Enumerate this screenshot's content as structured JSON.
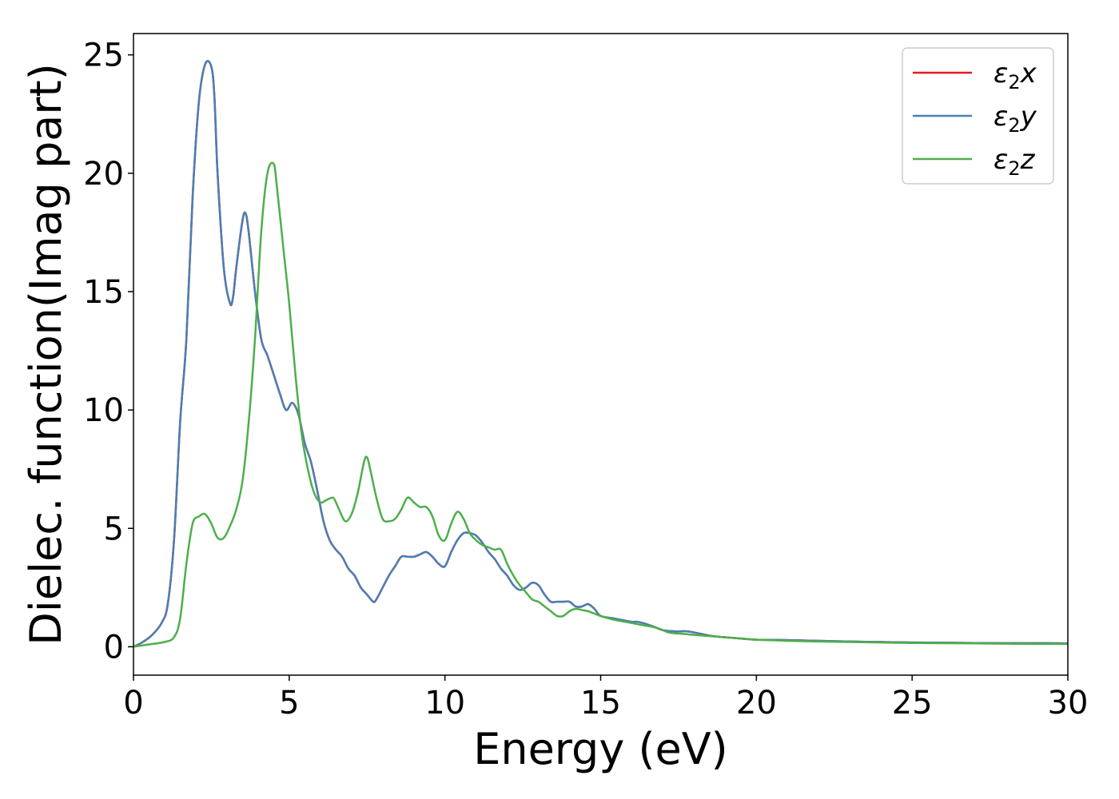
{
  "chart_data": {
    "type": "line",
    "xlabel": "Energy (eV)",
    "ylabel": "Dielec. function(Imag part)",
    "xlim": [
      0,
      30
    ],
    "ylim": [
      -1.2,
      25.9
    ],
    "xticks": [
      0,
      5,
      10,
      15,
      20,
      25,
      30
    ],
    "yticks": [
      0,
      5,
      10,
      15,
      20,
      25
    ],
    "xtick_labels": [
      "0",
      "5",
      "10",
      "15",
      "20",
      "25",
      "30"
    ],
    "ytick_labels": [
      "0",
      "5",
      "10",
      "15",
      "20",
      "25"
    ],
    "grid": false,
    "legend_position": "top-right",
    "series": [
      {
        "name": "ε2x",
        "symbol": "ε",
        "sub": "2",
        "axis": "x",
        "color": "#e41a1c",
        "x": [
          0,
          0.3,
          0.6,
          0.9,
          1.1,
          1.3,
          1.5,
          1.7,
          1.9,
          2.1,
          2.3,
          2.5,
          2.6,
          2.7,
          2.9,
          3.1,
          3.2,
          3.3,
          3.5,
          3.6,
          3.7,
          3.9,
          4.1,
          4.3,
          4.5,
          4.7,
          4.9,
          5.1,
          5.3,
          5.5,
          5.7,
          5.9,
          6.1,
          6.3,
          6.5,
          6.7,
          6.9,
          7.1,
          7.3,
          7.5,
          7.7,
          7.8,
          8.0,
          8.2,
          8.4,
          8.6,
          8.8,
          9.0,
          9.2,
          9.4,
          9.6,
          9.8,
          10.0,
          10.2,
          10.4,
          10.6,
          10.8,
          11.0,
          11.2,
          11.4,
          11.6,
          11.8,
          12.0,
          12.2,
          12.4,
          12.6,
          12.8,
          13.0,
          13.2,
          13.4,
          13.6,
          13.8,
          14.0,
          14.2,
          14.4,
          14.6,
          14.8,
          15.0,
          15.4,
          15.8,
          16.0,
          16.2,
          16.6,
          17.0,
          17.4,
          17.8,
          18.2,
          18.6,
          19.0,
          19.5,
          20.0,
          21.0,
          22.0,
          23.0,
          24.0,
          25.0,
          26.0,
          27.0,
          28.0,
          29.0,
          30.0
        ],
        "y": [
          0,
          0.2,
          0.5,
          1.0,
          1.8,
          4.5,
          9.5,
          13.0,
          19.0,
          23.0,
          24.6,
          24.5,
          23.2,
          20.0,
          16.0,
          14.5,
          14.8,
          16.0,
          18.0,
          18.3,
          17.5,
          15.0,
          13.0,
          12.3,
          11.5,
          10.7,
          10.0,
          10.3,
          9.8,
          8.6,
          7.8,
          6.6,
          5.3,
          4.5,
          4.1,
          3.8,
          3.3,
          3.0,
          2.5,
          2.2,
          1.9,
          2.0,
          2.5,
          3.0,
          3.4,
          3.8,
          3.8,
          3.8,
          3.9,
          4.0,
          3.8,
          3.5,
          3.4,
          4.0,
          4.5,
          4.8,
          4.8,
          4.7,
          4.4,
          4.0,
          3.7,
          3.3,
          3.0,
          2.6,
          2.4,
          2.5,
          2.7,
          2.6,
          2.2,
          1.9,
          1.9,
          1.9,
          1.9,
          1.7,
          1.7,
          1.8,
          1.6,
          1.3,
          1.2,
          1.1,
          1.05,
          1.05,
          0.9,
          0.7,
          0.65,
          0.65,
          0.55,
          0.45,
          0.4,
          0.35,
          0.3,
          0.28,
          0.25,
          0.22,
          0.2,
          0.18,
          0.17,
          0.16,
          0.15,
          0.15,
          0.14
        ]
      },
      {
        "name": "ε2y",
        "symbol": "ε",
        "sub": "2",
        "axis": "y",
        "color": "#4a7fb5",
        "x": [
          0,
          0.3,
          0.6,
          0.9,
          1.1,
          1.3,
          1.5,
          1.7,
          1.9,
          2.1,
          2.3,
          2.5,
          2.6,
          2.7,
          2.9,
          3.1,
          3.2,
          3.3,
          3.5,
          3.6,
          3.7,
          3.9,
          4.1,
          4.3,
          4.5,
          4.7,
          4.9,
          5.1,
          5.3,
          5.5,
          5.7,
          5.9,
          6.1,
          6.3,
          6.5,
          6.7,
          6.9,
          7.1,
          7.3,
          7.5,
          7.7,
          7.8,
          8.0,
          8.2,
          8.4,
          8.6,
          8.8,
          9.0,
          9.2,
          9.4,
          9.6,
          9.8,
          10.0,
          10.2,
          10.4,
          10.6,
          10.8,
          11.0,
          11.2,
          11.4,
          11.6,
          11.8,
          12.0,
          12.2,
          12.4,
          12.6,
          12.8,
          13.0,
          13.2,
          13.4,
          13.6,
          13.8,
          14.0,
          14.2,
          14.4,
          14.6,
          14.8,
          15.0,
          15.4,
          15.8,
          16.0,
          16.2,
          16.6,
          17.0,
          17.4,
          17.8,
          18.2,
          18.6,
          19.0,
          19.5,
          20.0,
          21.0,
          22.0,
          23.0,
          24.0,
          25.0,
          26.0,
          27.0,
          28.0,
          29.0,
          30.0
        ],
        "y": [
          0,
          0.2,
          0.5,
          1.0,
          1.8,
          4.5,
          9.5,
          13.0,
          19.0,
          23.0,
          24.6,
          24.5,
          23.2,
          20.0,
          16.0,
          14.5,
          14.8,
          16.0,
          18.0,
          18.3,
          17.5,
          15.0,
          13.0,
          12.3,
          11.5,
          10.7,
          10.0,
          10.3,
          9.8,
          8.6,
          7.8,
          6.6,
          5.3,
          4.5,
          4.1,
          3.8,
          3.3,
          3.0,
          2.5,
          2.2,
          1.9,
          2.0,
          2.5,
          3.0,
          3.4,
          3.8,
          3.8,
          3.8,
          3.9,
          4.0,
          3.8,
          3.5,
          3.4,
          4.0,
          4.5,
          4.8,
          4.8,
          4.7,
          4.4,
          4.0,
          3.7,
          3.3,
          3.0,
          2.6,
          2.4,
          2.5,
          2.7,
          2.6,
          2.2,
          1.9,
          1.9,
          1.9,
          1.9,
          1.7,
          1.7,
          1.8,
          1.6,
          1.3,
          1.2,
          1.1,
          1.05,
          1.05,
          0.9,
          0.7,
          0.65,
          0.65,
          0.55,
          0.45,
          0.4,
          0.35,
          0.3,
          0.28,
          0.25,
          0.22,
          0.2,
          0.18,
          0.17,
          0.16,
          0.15,
          0.15,
          0.14
        ]
      },
      {
        "name": "ε2z",
        "symbol": "ε",
        "sub": "2",
        "axis": "z",
        "color": "#4daf4a",
        "x": [
          0,
          0.5,
          1.0,
          1.3,
          1.5,
          1.7,
          1.9,
          2.1,
          2.3,
          2.5,
          2.7,
          2.9,
          3.1,
          3.3,
          3.5,
          3.7,
          3.9,
          4.1,
          4.3,
          4.5,
          4.6,
          4.8,
          5.0,
          5.2,
          5.4,
          5.6,
          5.8,
          6.0,
          6.2,
          6.4,
          6.5,
          6.6,
          6.8,
          7.0,
          7.2,
          7.4,
          7.5,
          7.6,
          7.8,
          8.0,
          8.2,
          8.4,
          8.6,
          8.8,
          9.0,
          9.2,
          9.4,
          9.6,
          9.8,
          10.0,
          10.2,
          10.4,
          10.6,
          10.8,
          11.0,
          11.2,
          11.4,
          11.6,
          11.8,
          12.0,
          12.2,
          12.4,
          12.6,
          12.8,
          13.0,
          13.2,
          13.4,
          13.6,
          13.8,
          14.0,
          14.2,
          14.4,
          14.6,
          14.8,
          15.0,
          15.4,
          15.8,
          16.0,
          16.4,
          16.8,
          17.2,
          17.6,
          18.0,
          18.5,
          19.0,
          19.5,
          20.0,
          21.0,
          22.0,
          23.0,
          24.0,
          25.0,
          26.0,
          27.0,
          28.0,
          29.0,
          30.0
        ],
        "y": [
          0,
          0.1,
          0.2,
          0.4,
          1.2,
          3.5,
          5.2,
          5.5,
          5.6,
          5.2,
          4.6,
          4.6,
          5.1,
          5.8,
          7.0,
          9.5,
          13.0,
          17.5,
          20.0,
          20.4,
          19.5,
          17.0,
          14.5,
          11.5,
          9.0,
          7.5,
          6.5,
          6.1,
          6.2,
          6.3,
          6.1,
          5.8,
          5.3,
          5.6,
          6.5,
          7.8,
          8.0,
          7.5,
          6.3,
          5.4,
          5.3,
          5.4,
          5.8,
          6.3,
          6.1,
          5.9,
          5.9,
          5.5,
          4.7,
          4.5,
          5.2,
          5.7,
          5.4,
          4.8,
          4.5,
          4.3,
          4.2,
          4.1,
          4.1,
          3.5,
          3.0,
          2.6,
          2.3,
          2.0,
          1.9,
          1.7,
          1.5,
          1.3,
          1.3,
          1.5,
          1.6,
          1.55,
          1.5,
          1.4,
          1.3,
          1.15,
          1.05,
          1.0,
          0.9,
          0.8,
          0.6,
          0.55,
          0.5,
          0.45,
          0.4,
          0.35,
          0.3,
          0.25,
          0.22,
          0.2,
          0.18,
          0.16,
          0.15,
          0.14,
          0.13,
          0.12,
          0.12
        ]
      }
    ]
  }
}
